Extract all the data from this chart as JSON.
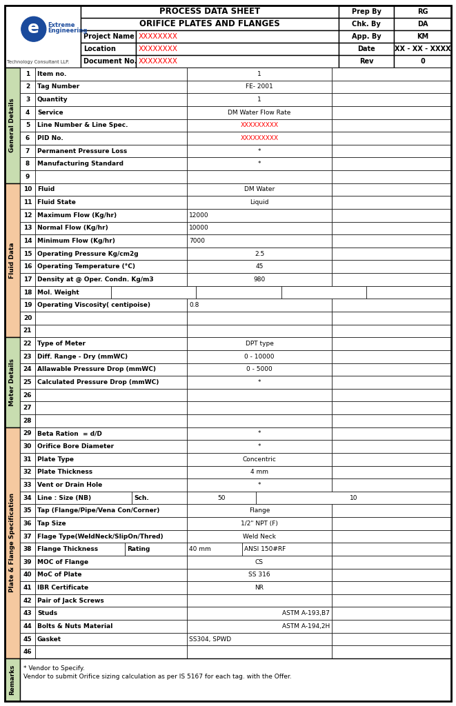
{
  "title1": "PROCESS DATA SHEET",
  "title2": "ORIFICE PLATES AND FLANGES",
  "prep_rows": [
    [
      "Prep By",
      "RG"
    ],
    [
      "Chk. By",
      "DA"
    ],
    [
      "App. By",
      "KM"
    ],
    [
      "Date",
      "XX - XX - XXXX"
    ],
    [
      "Rev",
      "0"
    ]
  ],
  "proj_rows": [
    [
      "Project Name",
      "XXXXXXXX",
      "App. By",
      "KM"
    ],
    [
      "Location",
      "XXXXXXXX",
      "Date",
      "XX - XX - XXXX"
    ],
    [
      "Document No.",
      "XXXXXXXX",
      "Rev",
      "0"
    ]
  ],
  "sections": [
    {
      "name": "General Details",
      "color": "#c8ddb0",
      "rows": [
        1,
        2,
        3,
        4,
        5,
        6,
        7,
        8,
        9
      ]
    },
    {
      "name": "Fluid Data",
      "color": "#f5c9a0",
      "rows": [
        10,
        11,
        12,
        13,
        14,
        15,
        16,
        17,
        18,
        19,
        20,
        21
      ]
    },
    {
      "name": "Meter Details",
      "color": "#c8ddb0",
      "rows": [
        22,
        23,
        24,
        25,
        26,
        27,
        28
      ]
    },
    {
      "name": "Plate & Flange Specification",
      "color": "#f5c9a0",
      "rows": [
        29,
        30,
        31,
        32,
        33,
        34,
        35,
        36,
        37,
        38,
        39,
        40,
        41,
        42,
        43,
        44,
        45,
        46
      ]
    },
    {
      "name": "Remarks",
      "color": "#c8ddb0",
      "rows": [
        "R"
      ]
    }
  ],
  "rows": [
    {
      "num": 1,
      "label": "Item no.",
      "value": "1",
      "va": "center",
      "vc": "black"
    },
    {
      "num": 2,
      "label": "Tag Number",
      "value": "FE- 2001",
      "va": "center",
      "vc": "black"
    },
    {
      "num": 3,
      "label": "Quantity",
      "value": "1",
      "va": "center",
      "vc": "black"
    },
    {
      "num": 4,
      "label": "Service",
      "value": "DM Water Flow Rate",
      "va": "center",
      "vc": "black"
    },
    {
      "num": 5,
      "label": "Line Number & Line Spec.",
      "value": "XXXXXXXXX",
      "va": "center",
      "vc": "red"
    },
    {
      "num": 6,
      "label": "PID No.",
      "value": "XXXXXXXXX",
      "va": "center",
      "vc": "red"
    },
    {
      "num": 7,
      "label": "Permanent Pressure Loss",
      "value": "*",
      "va": "center",
      "vc": "black"
    },
    {
      "num": 8,
      "label": "Manufacturing Standard",
      "value": "*",
      "va": "center",
      "vc": "black"
    },
    {
      "num": 9,
      "label": "",
      "value": "",
      "va": "center",
      "vc": "black"
    },
    {
      "num": 10,
      "label": "Fluid",
      "value": "DM Water",
      "va": "center",
      "vc": "black"
    },
    {
      "num": 11,
      "label": "Fluid State",
      "value": "Liquid",
      "va": "center",
      "vc": "black"
    },
    {
      "num": 12,
      "label": "Maximum Flow (Kg/hr)",
      "value": "12000",
      "va": "left",
      "vc": "black"
    },
    {
      "num": 13,
      "label": "Normal Flow (Kg/hr)",
      "value": "10000",
      "va": "left",
      "vc": "black"
    },
    {
      "num": 14,
      "label": "Minimum Flow (Kg/hr)",
      "value": "7000",
      "va": "left",
      "vc": "black"
    },
    {
      "num": 15,
      "label": "Operating Pressure Kg/cm2g",
      "value": "2.5",
      "va": "center",
      "vc": "black"
    },
    {
      "num": 16,
      "label": "Operating Temperature (°C)",
      "value": "45",
      "va": "center",
      "vc": "black"
    },
    {
      "num": 17,
      "label": "Density at @ Oper. Condn. Kg/m3",
      "value": "980",
      "va": "center",
      "vc": "black"
    },
    {
      "num": 18,
      "label": "Mol. Weight",
      "value": "",
      "va": "center",
      "vc": "black",
      "mol_weight": true
    },
    {
      "num": 19,
      "label": "Operating Viscosity( centipoise)",
      "value": "0.8",
      "va": "left",
      "vc": "black"
    },
    {
      "num": 20,
      "label": "",
      "value": "",
      "va": "center",
      "vc": "black"
    },
    {
      "num": 21,
      "label": "",
      "value": "",
      "va": "center",
      "vc": "black"
    },
    {
      "num": 22,
      "label": "Type of Meter",
      "value": "DPT type",
      "va": "center",
      "vc": "black"
    },
    {
      "num": 23,
      "label": "Diff. Range - Dry (mmWC)",
      "value": "0 - 10000",
      "va": "center",
      "vc": "black"
    },
    {
      "num": 24,
      "label": "Allawable Pressure Drop (mmWC)",
      "value": "0 - 5000",
      "va": "center",
      "vc": "black"
    },
    {
      "num": 25,
      "label": "Calculated Pressure Drop (mmWC)",
      "value": "*",
      "va": "center",
      "vc": "black"
    },
    {
      "num": 26,
      "label": "",
      "value": "",
      "va": "center",
      "vc": "black"
    },
    {
      "num": 27,
      "label": "",
      "value": "",
      "va": "center",
      "vc": "black"
    },
    {
      "num": 28,
      "label": "",
      "value": "",
      "va": "center",
      "vc": "black"
    },
    {
      "num": 29,
      "label": "Beta Ration  = d/D",
      "value": "*",
      "va": "center",
      "vc": "black"
    },
    {
      "num": 30,
      "label": "Orifice Bore Diameter",
      "value": "*",
      "va": "center",
      "vc": "black"
    },
    {
      "num": 31,
      "label": "Plate Type",
      "value": "Concentric",
      "va": "center",
      "vc": "black"
    },
    {
      "num": 32,
      "label": "Plate Thickness",
      "value": "4 mm",
      "va": "center",
      "vc": "black"
    },
    {
      "num": 33,
      "label": "Vent or Drain Hole",
      "value": "*",
      "va": "center",
      "vc": "black"
    },
    {
      "num": 34,
      "label": "Line : Size (NB)",
      "label2": "Sch.",
      "value": "50",
      "value2": "10",
      "va": "center",
      "vc": "black",
      "split_label": true
    },
    {
      "num": 35,
      "label": "Tap (Flange/Pipe/Vena Con/Corner)",
      "value": "Flange",
      "va": "center",
      "vc": "black"
    },
    {
      "num": 36,
      "label": "Tap Size",
      "value": "1/2\" NPT (F)",
      "va": "center",
      "vc": "black"
    },
    {
      "num": 37,
      "label": "Flage Type(WeldNeck/SlipOn/Thred)",
      "value": "Weld Neck",
      "va": "center",
      "vc": "black"
    },
    {
      "num": 38,
      "label": "Flange Thickness",
      "label2": "Rating",
      "value": "40 mm",
      "value2": "ANSI 150#RF",
      "va": "center",
      "vc": "black",
      "split_label": true
    },
    {
      "num": 39,
      "label": "MOC of Flange",
      "value": "CS",
      "va": "center",
      "vc": "black"
    },
    {
      "num": 40,
      "label": "MoC of Plate",
      "value": "SS 316",
      "va": "center",
      "vc": "black"
    },
    {
      "num": 41,
      "label": "IBR Certificate",
      "value": "NR",
      "va": "center",
      "vc": "black"
    },
    {
      "num": 42,
      "label": "Pair of Jack Screws",
      "value": "",
      "va": "center",
      "vc": "black"
    },
    {
      "num": 43,
      "label": "Studs",
      "value": "ASTM A-193,B7",
      "va": "right",
      "vc": "black"
    },
    {
      "num": 44,
      "label": "Bolts & Nuts Material",
      "value": "ASTM A-194,2H",
      "va": "right",
      "vc": "black"
    },
    {
      "num": 45,
      "label": "Gasket",
      "value": "SS304, SPWD",
      "va": "left",
      "vc": "black"
    },
    {
      "num": 46,
      "label": "",
      "value": "",
      "va": "center",
      "vc": "black"
    }
  ],
  "remarks_line1": "* Vendor to Specify.",
  "remarks_line2": "Vendor to submit Orifice sizing calculation as per IS 5167 for each tag. with the Offer."
}
